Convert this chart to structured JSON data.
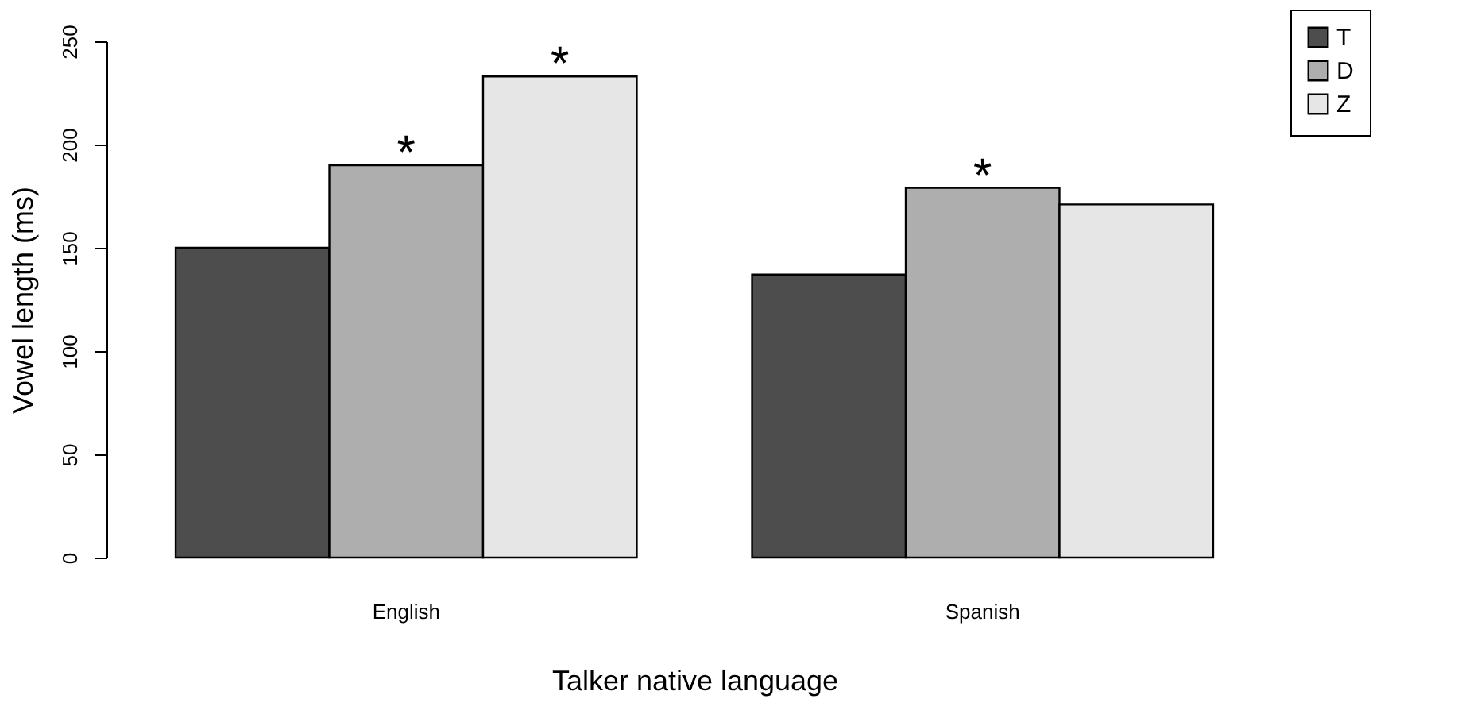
{
  "chart_data": {
    "type": "bar",
    "xlabel": "Talker native language",
    "ylabel": "Vowel length (ms)",
    "categories": [
      "English",
      "Spanish"
    ],
    "series": [
      {
        "name": "T",
        "color": "#4d4d4d",
        "values": [
          150,
          137
        ]
      },
      {
        "name": "D",
        "color": "#aeaeae",
        "values": [
          190,
          179
        ]
      },
      {
        "name": "Z",
        "color": "#e6e6e6",
        "values": [
          233,
          171
        ]
      }
    ],
    "ylim": [
      0,
      250
    ],
    "yticks": [
      0,
      50,
      100,
      150,
      200,
      250
    ],
    "grid": false,
    "legend": "top right",
    "annotations": [
      {
        "text": "*",
        "x": "English",
        "y": 190
      },
      {
        "text": "*",
        "y": 233
      },
      {
        "text": "*",
        "x": "Spanish",
        "y": 179
      }
    ]
  }
}
